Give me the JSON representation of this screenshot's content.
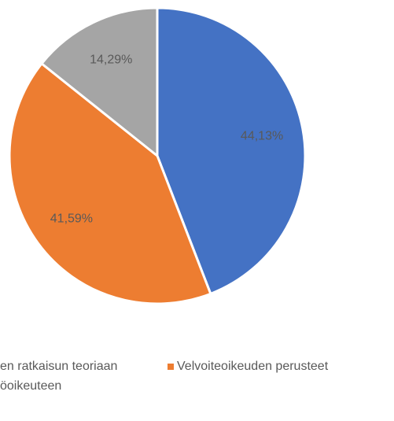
{
  "chart_data": {
    "type": "pie",
    "categories": [
      "en ratkaisun teoriaan",
      "Velvoiteoikeuden perusteet",
      "öoikeuteen"
    ],
    "values": [
      44.13,
      41.59,
      14.29
    ],
    "value_labels": [
      "44,13%",
      "41,59%",
      "14,29%"
    ],
    "colors": [
      "#4472c4",
      "#ed7d31",
      "#a5a5a5"
    ],
    "legend": "bottom"
  }
}
